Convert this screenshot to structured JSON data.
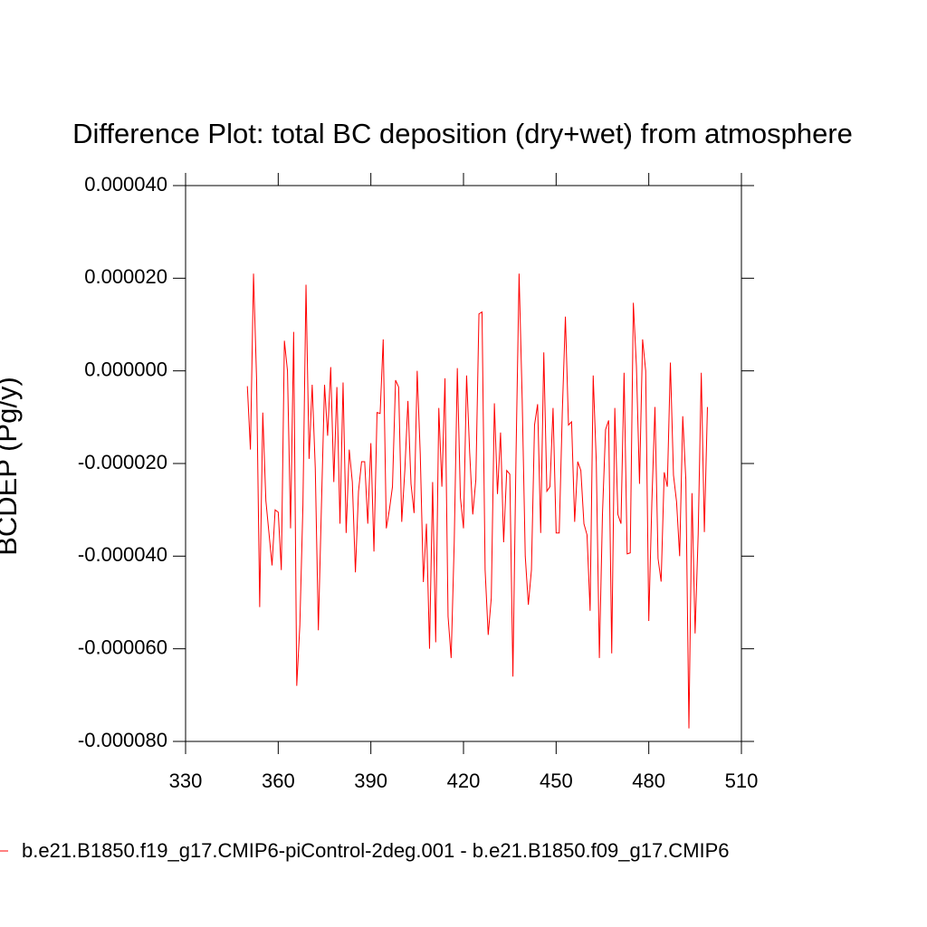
{
  "chart_data": {
    "type": "line",
    "title": "Difference Plot: total BC deposition (dry+wet) from atmosphere",
    "y_label": "BCDEP (Pg/y)",
    "xlim": [
      330,
      510
    ],
    "xticks": [
      330,
      360,
      390,
      420,
      450,
      480,
      510
    ],
    "ylim": [
      -8e-05,
      4e-05
    ],
    "yticks": [
      {
        "value": -8e-05,
        "label": "-0.000080"
      },
      {
        "value": -6e-05,
        "label": "-0.000060"
      },
      {
        "value": -4e-05,
        "label": "-0.000040"
      },
      {
        "value": -2e-05,
        "label": "-0.000020"
      },
      {
        "value": 0,
        "label": "0.000000"
      },
      {
        "value": 2e-05,
        "label": "0.000020"
      },
      {
        "value": 4e-05,
        "label": "0.000040"
      }
    ],
    "x": [
      350,
      351,
      352,
      353,
      354,
      355,
      356,
      357,
      358,
      359,
      360,
      361,
      362,
      363,
      364,
      365,
      366,
      367,
      368,
      369,
      370,
      371,
      372,
      373,
      374,
      375,
      376,
      377,
      378,
      379,
      380,
      381,
      382,
      383,
      384,
      385,
      386,
      387,
      388,
      389,
      390,
      391,
      392,
      393,
      394,
      395,
      396,
      397,
      398,
      399,
      400,
      401,
      402,
      403,
      404,
      405,
      406,
      407,
      408,
      409,
      410,
      411,
      412,
      413,
      414,
      415,
      416,
      417,
      418,
      419,
      420,
      421,
      422,
      423,
      424,
      425,
      426,
      427,
      428,
      429,
      430,
      431,
      432,
      433,
      434,
      435,
      436,
      437,
      438,
      439,
      440,
      441,
      442,
      443,
      444,
      445,
      446,
      447,
      448,
      449,
      450,
      451,
      452,
      453,
      454,
      455,
      456,
      457,
      458,
      459,
      460,
      461,
      462,
      463,
      464,
      465,
      466,
      467,
      468,
      469,
      470,
      471,
      472,
      473,
      474,
      475,
      476,
      477,
      478,
      479,
      480,
      481,
      482,
      483,
      484,
      485,
      486,
      487,
      488,
      489,
      490,
      491,
      492,
      493,
      494,
      495,
      496,
      497,
      498,
      499
    ],
    "series": [
      {
        "name": "b.e21.B1850.f19_g17.CMIP6-piControl-2deg.001 - b.e21.B1850.f09_g17.CMIP6",
        "color": "#ff0000",
        "values": [
          -3.3e-06,
          -1.7e-05,
          2.1e-05,
          -2e-06,
          -5.1e-05,
          -9e-06,
          -2.8e-05,
          -3.5e-05,
          -4.2e-05,
          -3e-05,
          -3.05e-05,
          -4.3e-05,
          6.5e-06,
          0,
          -3.4e-05,
          8.4e-06,
          -6.8e-05,
          -5.5e-05,
          -2.9e-05,
          1.86e-05,
          -1.9e-05,
          -3e-06,
          -2.1e-05,
          -5.6e-05,
          -2.9e-05,
          -3e-06,
          -1.4e-05,
          8e-07,
          -2.4e-05,
          -3.5e-06,
          -3.3e-05,
          -2.5e-06,
          -3.5e-05,
          -1.7e-05,
          -2.4e-05,
          -4.35e-05,
          -2.6e-05,
          -1.96e-05,
          -1.96e-05,
          -3.3e-05,
          -1.56e-05,
          -3.9e-05,
          -9e-06,
          -9.2e-06,
          6.8e-06,
          -3.4e-05,
          -3e-05,
          -2.5e-05,
          -2e-06,
          -3.5e-06,
          -3.26e-05,
          -2.15e-05,
          -6.5e-06,
          -2.44e-05,
          -3.07e-05,
          0,
          -1.8e-05,
          -4.56e-05,
          -3.3e-05,
          -6e-05,
          -2.4e-05,
          -5.86e-05,
          -8e-06,
          -2.5e-05,
          -1.6e-06,
          -5.3e-05,
          -6.2e-05,
          -3.7e-05,
          6e-07,
          -2.74e-05,
          -3.4e-05,
          -1e-06,
          -1.76e-05,
          -3.1e-05,
          -2.35e-05,
          1.23e-05,
          1.27e-05,
          -4.3e-05,
          -5.7e-05,
          -4.9e-05,
          -7e-06,
          -2.66e-05,
          -1.33e-05,
          -3.7e-05,
          -2.15e-05,
          -2.23e-05,
          -6.6e-05,
          -1.86e-05,
          2.1e-05,
          -6e-06,
          -4e-05,
          -5.05e-05,
          -4.3e-05,
          -1.17e-05,
          -7.2e-06,
          -3.5e-05,
          4e-06,
          -2.6e-05,
          -2.5e-05,
          -8e-06,
          -3.5e-05,
          -3.5e-05,
          -8.8e-06,
          1.17e-05,
          -1.17e-05,
          -1.1e-05,
          -3.26e-05,
          -1.96e-05,
          -2.15e-05,
          -3.3e-05,
          -3.54e-05,
          -5.18e-05,
          -1e-06,
          -1.96e-05,
          -6.2e-05,
          -3.1e-05,
          -1.27e-05,
          -1.07e-05,
          -6.1e-05,
          -8e-06,
          -3.1e-05,
          -3.3e-05,
          -4e-07,
          -3.95e-05,
          -3.93e-05,
          1.47e-05,
          1e-06,
          -2.44e-05,
          6.8e-06,
          0,
          -5.4e-05,
          -2.83e-05,
          -7.8e-06,
          -4.05e-05,
          -4.55e-05,
          -2.19e-05,
          -2.5e-05,
          1.8e-06,
          -2.25e-05,
          -2.83e-05,
          -4e-05,
          -9.8e-06,
          -2.35e-05,
          -7.72e-05,
          -2.64e-05,
          -5.67e-05,
          -3.52e-05,
          -4e-07,
          -3.48e-05,
          -7.8e-06
        ]
      }
    ]
  }
}
